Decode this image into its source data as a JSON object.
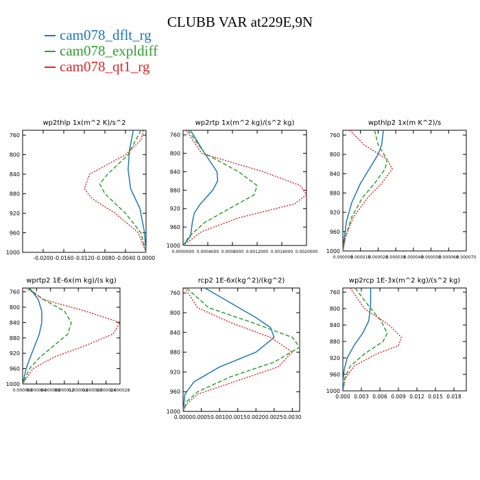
{
  "title": "CLUBB VAR at229E,9N",
  "legend": [
    {
      "name": "cam078_dflt_rg",
      "color": "#1f77b4"
    },
    {
      "name": "cam078_expldiff",
      "color": "#2ca02c"
    },
    {
      "name": "cam078_qt1_rg",
      "color": "#d62728"
    }
  ],
  "chart_data": [
    {
      "type": "line",
      "title": "wp2thlp   1x(m^2 K)/s^2",
      "xlabel": "",
      "ylabel": "",
      "xlim": [
        -0.024,
        0.0
      ],
      "ylim": [
        1000,
        750
      ],
      "xticks": [
        "-0.0200",
        "-0.0160",
        "-0.0120",
        "-0.0080",
        "-0.0040",
        "0.0000"
      ],
      "xtick_values": [
        -0.02,
        -0.016,
        -0.012,
        -0.008,
        -0.004,
        0.0
      ],
      "yticks": [
        "760",
        "800",
        "840",
        "880",
        "920",
        "960",
        "1000"
      ],
      "ytick_values": [
        760,
        800,
        840,
        880,
        920,
        960,
        1000
      ],
      "series": [
        {
          "name": "cam078_dflt_rg",
          "y": [
            750,
            790,
            830,
            870,
            910,
            960,
            1000
          ],
          "x": [
            -0.0025,
            -0.0032,
            -0.0035,
            -0.003,
            -0.0012,
            -0.0003,
            0.0
          ]
        },
        {
          "name": "cam078_expldiff",
          "y": [
            750,
            800,
            840,
            860,
            880,
            920,
            960,
            1000
          ],
          "x": [
            -0.001,
            -0.0035,
            -0.0075,
            -0.009,
            -0.008,
            -0.004,
            -0.001,
            0.0
          ]
        },
        {
          "name": "cam078_qt1_rg",
          "y": [
            750,
            770,
            800,
            840,
            870,
            890,
            920,
            960,
            1000
          ],
          "x": [
            -0.0005,
            -0.001,
            -0.004,
            -0.011,
            -0.012,
            -0.0105,
            -0.006,
            -0.0015,
            0.0
          ]
        }
      ]
    },
    {
      "type": "line",
      "title": "wp2rtp   1x(m^2 kg)/(s^2 kg)",
      "xlabel": "",
      "ylabel": "",
      "xlim": [
        0.0,
        0.002
      ],
      "ylim": [
        1000,
        750
      ],
      "xticks": [
        "0.0000000",
        "0.0004000",
        "0.0008000",
        "0.0012000",
        "0.0016000",
        "0.0020000"
      ],
      "xtick_values": [
        0.0,
        0.0004,
        0.0008,
        0.0012,
        0.0016,
        0.002
      ],
      "yticks": [
        "760",
        "800",
        "840",
        "880",
        "920",
        "960",
        "1000"
      ],
      "ytick_values": [
        760,
        800,
        840,
        880,
        920,
        960,
        1000
      ],
      "series": [
        {
          "name": "cam078_dflt_rg",
          "y": [
            750,
            800,
            840,
            860,
            880,
            910,
            930,
            950,
            980,
            1000
          ],
          "x": [
            0.00012,
            0.00035,
            0.00055,
            0.00056,
            0.00048,
            0.00028,
            0.00018,
            0.00015,
            0.00012,
            0.0
          ]
        },
        {
          "name": "cam078_expldiff",
          "y": [
            750,
            800,
            840,
            870,
            890,
            920,
            950,
            980,
            1000
          ],
          "x": [
            8e-05,
            0.00035,
            0.0009,
            0.0012,
            0.00115,
            0.00075,
            0.00035,
            0.0001,
            0.0
          ]
        },
        {
          "name": "cam078_qt1_rg",
          "y": [
            750,
            800,
            840,
            870,
            890,
            910,
            940,
            970,
            1000
          ],
          "x": [
            5e-05,
            0.0003,
            0.0013,
            0.0019,
            0.002,
            0.0018,
            0.0009,
            0.0003,
            0.0
          ]
        }
      ]
    },
    {
      "type": "line",
      "title": "wpthlp2   1x(m K^2)/s",
      "xlabel": "",
      "ylabel": "",
      "xlim": [
        0.0,
        7e-05
      ],
      "ylim": [
        1000,
        750
      ],
      "xticks": [
        "0.000000",
        "0.000010",
        "0.000020",
        "0.000030",
        "0.000040",
        "0.000050",
        "0.000060",
        "0.000070"
      ],
      "xtick_values": [
        0.0,
        1e-05,
        2e-05,
        3e-05,
        4e-05,
        5e-05,
        6e-05,
        7e-05
      ],
      "yticks": [
        "760",
        "800",
        "840",
        "880",
        "920",
        "960",
        "1000"
      ],
      "ytick_values": [
        760,
        800,
        840,
        880,
        920,
        960,
        1000
      ],
      "series": [
        {
          "name": "cam078_dflt_rg",
          "y": [
            750,
            780,
            800,
            830,
            860,
            900,
            940,
            980,
            1000
          ],
          "x": [
            2.3e-05,
            2.2e-05,
            2e-05,
            1.5e-05,
            1e-05,
            5e-06,
            2e-06,
            5e-07,
            0.0
          ]
        },
        {
          "name": "cam078_expldiff",
          "y": [
            750,
            780,
            810,
            830,
            860,
            890,
            930,
            970,
            1000
          ],
          "x": [
            1.8e-05,
            2e-05,
            2.5e-05,
            2.4e-05,
            1.8e-05,
            1.1e-05,
            5e-06,
            1.5e-06,
            0.0
          ]
        },
        {
          "name": "cam078_qt1_rg",
          "y": [
            750,
            780,
            810,
            830,
            860,
            890,
            930,
            970,
            1000
          ],
          "x": [
            4e-06,
            1.2e-05,
            2.5e-05,
            2.8e-05,
            2.2e-05,
            1.4e-05,
            6e-06,
            1.5e-06,
            0.0
          ]
        }
      ]
    },
    {
      "type": "line",
      "title": "wprtp2   1E-6x(m kg)/(s kg)",
      "xlabel": "",
      "ylabel": "",
      "xlim": [
        0.0,
        2.8e-05
      ],
      "ylim": [
        1000,
        750
      ],
      "xticks": [
        "0.000000",
        "0.000004",
        "0.000008",
        "0.000012",
        "0.000016",
        "0.000020",
        "0.000024",
        "0.000028"
      ],
      "xtick_values": [
        0.0,
        4e-06,
        8e-06,
        1.2e-05,
        1.6e-05,
        2e-05,
        2.4e-05,
        2.8e-05
      ],
      "yticks": [
        "760",
        "800",
        "840",
        "880",
        "920",
        "960",
        "1000"
      ],
      "ytick_values": [
        760,
        800,
        840,
        880,
        920,
        960,
        1000
      ],
      "series": [
        {
          "name": "cam078_dflt_rg",
          "y": [
            750,
            780,
            810,
            840,
            870,
            900,
            930,
            960,
            1000
          ],
          "x": [
            2e-06,
            4.5e-06,
            5.5e-06,
            5.5e-06,
            4.8e-06,
            3.5e-06,
            2.2e-06,
            1e-06,
            0.0
          ]
        },
        {
          "name": "cam078_expldiff",
          "y": [
            750,
            780,
            810,
            840,
            870,
            900,
            930,
            960,
            1000
          ],
          "x": [
            1.5e-06,
            6e-06,
            1.2e-05,
            1.4e-05,
            1.3e-05,
            9e-06,
            5e-06,
            2e-06,
            0.0
          ]
        },
        {
          "name": "cam078_qt1_rg",
          "y": [
            750,
            780,
            810,
            840,
            870,
            900,
            930,
            960,
            1000
          ],
          "x": [
            1e-06,
            6e-06,
            1.8e-05,
            2.8e-05,
            2.6e-05,
            1.8e-05,
            9e-06,
            3e-06,
            0.0
          ]
        }
      ]
    },
    {
      "type": "line",
      "title": "rcp2   1E-6x(kg^2)/(kg^2)",
      "xlabel": "",
      "ylabel": "",
      "xlim": [
        0.0,
        0.0032
      ],
      "ylim": [
        1000,
        750
      ],
      "xticks": [
        "0.0000",
        "0.0005",
        "0.0010",
        "0.0015",
        "0.0020",
        "0.0025",
        "0.0030"
      ],
      "xtick_values": [
        0.0,
        0.0005,
        0.001,
        0.0015,
        0.002,
        0.0025,
        0.003
      ],
      "yticks": [
        "760",
        "800",
        "840",
        "880",
        "920",
        "960",
        "1000"
      ],
      "ytick_values": [
        760,
        800,
        840,
        880,
        920,
        960,
        1000
      ],
      "series": [
        {
          "name": "cam078_dflt_rg",
          "y": [
            750,
            780,
            810,
            830,
            850,
            880,
            910,
            940,
            965,
            1000
          ],
          "x": [
            0.0006,
            0.0013,
            0.002,
            0.0024,
            0.0025,
            0.002,
            0.001,
            0.0003,
            5e-05,
            0.0
          ]
        },
        {
          "name": "cam078_expldiff",
          "y": [
            750,
            790,
            820,
            850,
            870,
            900,
            930,
            960,
            980,
            1000
          ],
          "x": [
            0.0001,
            0.0007,
            0.0019,
            0.003,
            0.0032,
            0.0025,
            0.0013,
            0.0004,
            0.0001,
            0.0
          ]
        },
        {
          "name": "cam078_qt1_rg",
          "y": [
            750,
            790,
            820,
            850,
            880,
            910,
            940,
            965,
            985,
            1000
          ],
          "x": [
            5e-05,
            0.0004,
            0.0013,
            0.0024,
            0.003,
            0.0026,
            0.0014,
            0.0004,
            0.0001,
            0.0
          ]
        }
      ]
    },
    {
      "type": "line",
      "title": "wp2rcp   1E-3x(m^2 kg)/(s^2 kg)",
      "xlabel": "",
      "ylabel": "",
      "xlim": [
        0.0,
        0.02
      ],
      "ylim": [
        1000,
        750
      ],
      "xticks": [
        "0.000",
        "0.003",
        "0.006",
        "0.009",
        "0.012",
        "0.015",
        "0.018"
      ],
      "xtick_values": [
        0.0,
        0.003,
        0.006,
        0.009,
        0.012,
        0.015,
        0.018
      ],
      "yticks": [
        "760",
        "800",
        "840",
        "880",
        "920",
        "960",
        "1000"
      ],
      "ytick_values": [
        760,
        800,
        840,
        880,
        920,
        960,
        1000
      ],
      "series": [
        {
          "name": "cam078_dflt_rg",
          "y": [
            750,
            790,
            830,
            860,
            890,
            920,
            950,
            980,
            1000
          ],
          "x": [
            0.0045,
            0.0045,
            0.0042,
            0.0032,
            0.0018,
            0.0007,
            0.0002,
            0.0,
            0.0
          ]
        },
        {
          "name": "cam078_expldiff",
          "y": [
            750,
            790,
            830,
            860,
            880,
            910,
            940,
            970,
            1000
          ],
          "x": [
            0.002,
            0.004,
            0.0062,
            0.0072,
            0.0065,
            0.0035,
            0.0012,
            0.0003,
            0.0
          ]
        },
        {
          "name": "cam078_qt1_rg",
          "y": [
            750,
            800,
            840,
            870,
            890,
            910,
            940,
            970,
            1000
          ],
          "x": [
            0.0012,
            0.0035,
            0.0075,
            0.0095,
            0.009,
            0.0055,
            0.0018,
            0.0004,
            0.0
          ]
        }
      ]
    }
  ]
}
